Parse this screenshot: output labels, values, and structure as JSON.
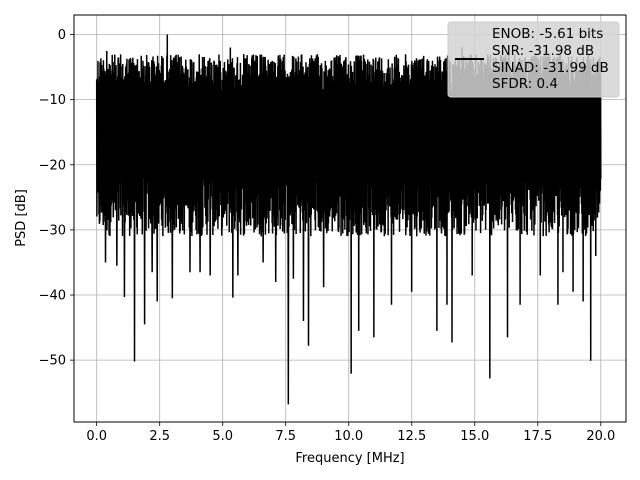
{
  "chart_data": {
    "type": "line",
    "title": "",
    "xlabel": "Frequency [MHz]",
    "ylabel": "PSD [dB]",
    "xlim": [
      -0.9,
      21.0
    ],
    "ylim": [
      -59.5,
      3.0
    ],
    "xticks": [
      0.0,
      2.5,
      5.0,
      7.5,
      10.0,
      12.5,
      15.0,
      17.5,
      20.0
    ],
    "xtick_labels": [
      "0.0",
      "2.5",
      "5.0",
      "7.5",
      "10.0",
      "12.5",
      "15.0",
      "17.5",
      "20.0"
    ],
    "yticks": [
      0,
      -10,
      -20,
      -30,
      -40,
      -50
    ],
    "ytick_labels": [
      "0",
      "−10",
      "−20",
      "−30",
      "−40",
      "−50"
    ],
    "grid": true,
    "legend": {
      "placement": "upper-right",
      "entries": [
        "ENOB: -5.61 bits",
        "SNR: -31.98 dB",
        "SINAD: -31.99 dB",
        "SFDR: 0.4"
      ]
    },
    "series": [
      {
        "color": "#000000",
        "sampling": {
          "x_start": 0.0,
          "x_end": 20.0,
          "points": 2400,
          "y_min_typical": -31,
          "y_max_typical": -3
        },
        "peaks": [
          {
            "x": 2.8,
            "y": 0.0
          },
          {
            "x": 0.4,
            "y": -2.5
          },
          {
            "x": 5.3,
            "y": -2.0
          },
          {
            "x": 9.0,
            "y": -2.2
          },
          {
            "x": 14.5,
            "y": -2.0
          },
          {
            "x": 17.8,
            "y": -2.5
          }
        ],
        "dips": [
          {
            "x": 0.35,
            "y": -35
          },
          {
            "x": 0.8,
            "y": -35.5
          },
          {
            "x": 1.1,
            "y": -40.3
          },
          {
            "x": 1.5,
            "y": -50.2
          },
          {
            "x": 1.9,
            "y": -44.5
          },
          {
            "x": 2.2,
            "y": -36.5
          },
          {
            "x": 2.4,
            "y": -41
          },
          {
            "x": 3.0,
            "y": -40.5
          },
          {
            "x": 3.7,
            "y": -36.5
          },
          {
            "x": 4.1,
            "y": -36.5
          },
          {
            "x": 4.5,
            "y": -37
          },
          {
            "x": 5.4,
            "y": -40.4
          },
          {
            "x": 5.6,
            "y": -37
          },
          {
            "x": 6.6,
            "y": -35
          },
          {
            "x": 7.1,
            "y": -38
          },
          {
            "x": 7.6,
            "y": -56.8
          },
          {
            "x": 7.8,
            "y": -37.5
          },
          {
            "x": 8.2,
            "y": -44
          },
          {
            "x": 8.4,
            "y": -47.8
          },
          {
            "x": 9.0,
            "y": -38.8
          },
          {
            "x": 10.1,
            "y": -52.1
          },
          {
            "x": 10.4,
            "y": -45.5
          },
          {
            "x": 11.0,
            "y": -46.5
          },
          {
            "x": 11.7,
            "y": -41.5
          },
          {
            "x": 12.5,
            "y": -39.5
          },
          {
            "x": 13.5,
            "y": -45.5
          },
          {
            "x": 13.9,
            "y": -41.5
          },
          {
            "x": 14.1,
            "y": -47.3
          },
          {
            "x": 14.9,
            "y": -37
          },
          {
            "x": 15.6,
            "y": -52.8
          },
          {
            "x": 16.3,
            "y": -46.5
          },
          {
            "x": 16.8,
            "y": -41.5
          },
          {
            "x": 17.6,
            "y": -37
          },
          {
            "x": 18.3,
            "y": -41.5
          },
          {
            "x": 18.5,
            "y": -36.5
          },
          {
            "x": 18.9,
            "y": -39.5
          },
          {
            "x": 19.3,
            "y": -41
          },
          {
            "x": 19.6,
            "y": -50.1
          },
          {
            "x": 19.8,
            "y": -34
          }
        ]
      }
    ]
  }
}
